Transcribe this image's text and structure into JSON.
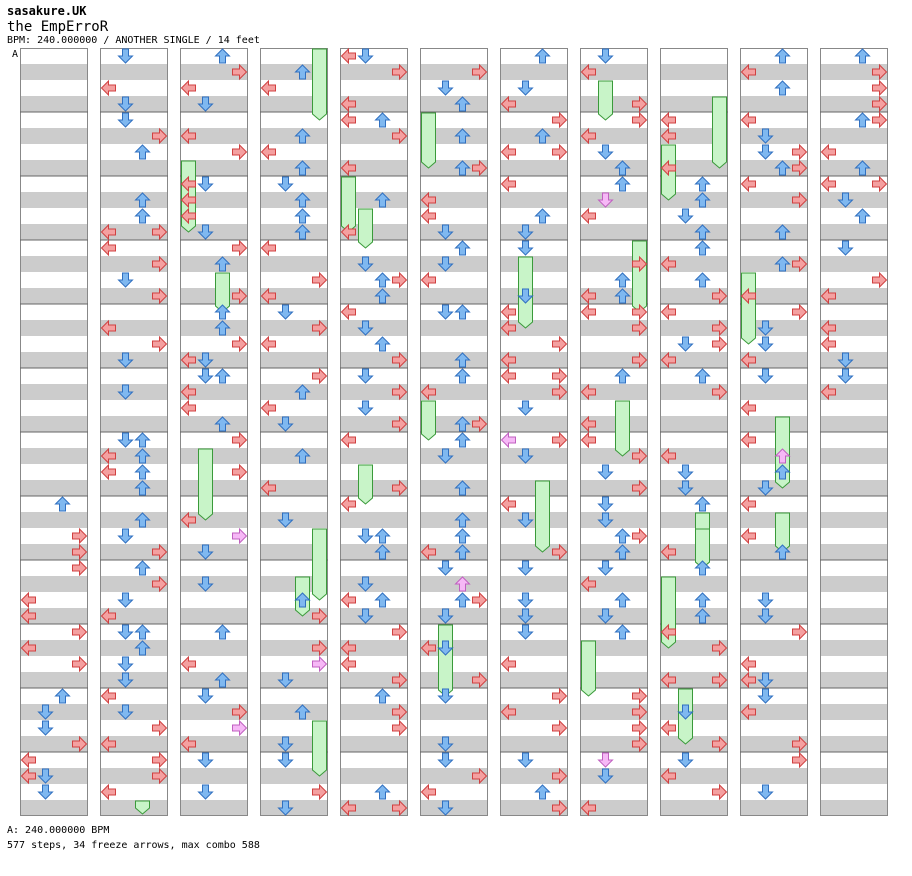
{
  "song": {
    "artist": "sasakure.UK",
    "title": "the EmpErroR",
    "info": "BPM: 240.000000 / ANOTHER SINGLE / 14 feet"
  },
  "chart_data": {
    "type": "table",
    "style": "step chart",
    "columns": 11,
    "beats_per_column": 48,
    "section_marker": "A",
    "bpm_segments": [
      {
        "label": "A",
        "bpm": 240.0
      }
    ],
    "legend_bpm": "A: 240.000000 BPM",
    "summary": "577 steps, 34 freeze arrows, max combo 588",
    "colors": {
      "left_right": "#f4a0a0",
      "up_down": "#7fb8f0",
      "freeze": "#c8f4c8",
      "shock": "#f6b8f6",
      "stripe": "#cccccc"
    }
  }
}
